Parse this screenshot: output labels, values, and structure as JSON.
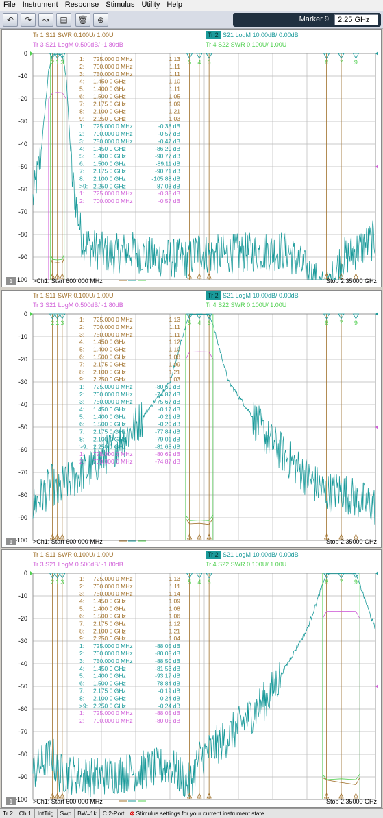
{
  "menu": [
    "File",
    "Instrument",
    "Response",
    "Stimulus",
    "Utility",
    "Help"
  ],
  "toolbar": {
    "buttons": [
      "undo-icon",
      "redo-icon",
      "marker-add-icon",
      "display-icon",
      "trash-icon",
      "zoom-icon"
    ],
    "marker_label": "Marker 9",
    "marker_value": "2.25 GHz"
  },
  "colors": {
    "tr1": "#a0702a",
    "tr2": "#1a9a9a",
    "tr3": "#d060d8",
    "tr4": "#50d050",
    "grid": "#b8b8b8"
  },
  "traces": {
    "tr1": "Tr  1   S11  SWR 0.100U/  1.00U",
    "tr2_badge": "Tr  2",
    "tr2": "S21 LogM 10.00dB/  0.00dB",
    "tr3": "Tr  3   S21 LogM 0.500dB/  -1.80dB",
    "tr4": "Tr  4   S22 SWR 0.100U/  1.00U"
  },
  "y_ticks": [
    "0",
    "-10",
    "-20",
    "-30",
    "-40",
    "-50",
    "-60",
    "-70",
    "-80",
    "-90",
    "-100"
  ],
  "footer": {
    "ch_badge": "1",
    "start": ">Ch1:  Start   600.000 MHz",
    "stop": "Stop  2.35000 GHz"
  },
  "channels": [
    {
      "rows": [
        [
          "1:",
          "725.000 0 MHz",
          "1.13"
        ],
        [
          "2:",
          "700.000 0 MHz",
          "1.11"
        ],
        [
          "3:",
          "750.000 0 MHz",
          "1.11"
        ],
        [
          "4:",
          "1.450 0 GHz",
          "1.10"
        ],
        [
          "5:",
          "1.400 0 GHz",
          "1.11"
        ],
        [
          "6:",
          "1.500 0 GHz",
          "1.05"
        ],
        [
          "7:",
          "2.175 0 GHz",
          "1.09"
        ],
        [
          "8:",
          "2.100 0 GHz",
          "1.21"
        ],
        [
          "9:",
          "2.250 0 GHz",
          "1.03"
        ],
        [
          "1:",
          "725.000 0 MHz",
          "-0.38 dB"
        ],
        [
          "2:",
          "700.000 0 MHz",
          "-0.57 dB"
        ],
        [
          "3:",
          "750.000 0 MHz",
          "-0.47 dB"
        ],
        [
          "4:",
          "1.450 0 GHz",
          "-86.20 dB"
        ],
        [
          "5:",
          "1.400 0 GHz",
          "-90.77 dB"
        ],
        [
          "6:",
          "1.500 0 GHz",
          "-89.11 dB"
        ],
        [
          "7:",
          "2.175 0 GHz",
          "-90.71 dB"
        ],
        [
          "8:",
          "2.100 0 GHz",
          "-105.88 dB"
        ],
        [
          ">9:",
          "2.250 0 GHz",
          "-87.03 dB"
        ],
        [
          "1:",
          "725.000 0 MHz",
          "-0.38 dB"
        ],
        [
          "2:",
          "700.000 0 MHz",
          "-0.57 dB"
        ]
      ]
    },
    {
      "rows": [
        [
          "1:",
          "725.000 0 MHz",
          "1.13"
        ],
        [
          "2:",
          "700.000 0 MHz",
          "1.11"
        ],
        [
          "3:",
          "750.000 0 MHz",
          "1.11"
        ],
        [
          "4:",
          "1.450 0 GHz",
          "1.12"
        ],
        [
          "5:",
          "1.400 0 GHz",
          "1.10"
        ],
        [
          "6:",
          "1.500 0 GHz",
          "1.08"
        ],
        [
          "7:",
          "2.175 0 GHz",
          "1.09"
        ],
        [
          "8:",
          "2.100 0 GHz",
          "1.21"
        ],
        [
          "9:",
          "2.250 0 GHz",
          "1.03"
        ],
        [
          "1:",
          "725.000 0 MHz",
          "-80.69 dB"
        ],
        [
          "2:",
          "700.000 0 MHz",
          "-74.87 dB"
        ],
        [
          "3:",
          "750.000 0 MHz",
          "-75.67 dB"
        ],
        [
          "4:",
          "1.450 0 GHz",
          "-0.17 dB"
        ],
        [
          "5:",
          "1.400 0 GHz",
          "-0.21 dB"
        ],
        [
          "6:",
          "1.500 0 GHz",
          "-0.20 dB"
        ],
        [
          "7:",
          "2.175 0 GHz",
          "-77.84 dB"
        ],
        [
          "8:",
          "2.100 0 GHz",
          "-79.01 dB"
        ],
        [
          ">9:",
          "2.250 0 GHz",
          "-81.65 dB"
        ],
        [
          "1:",
          "725.000 0 MHz",
          "-80.69 dB"
        ],
        [
          "2:",
          "700.000 0 MHz",
          "-74.87 dB"
        ]
      ]
    },
    {
      "rows": [
        [
          "1:",
          "725.000 0 MHz",
          "1.13"
        ],
        [
          "2:",
          "700.000 0 MHz",
          "1.11"
        ],
        [
          "3:",
          "750.000 0 MHz",
          "1.14"
        ],
        [
          "4:",
          "1.450 0 GHz",
          "1.09"
        ],
        [
          "5:",
          "1.400 0 GHz",
          "1.08"
        ],
        [
          "6:",
          "1.500 0 GHz",
          "1.06"
        ],
        [
          "7:",
          "2.175 0 GHz",
          "1.12"
        ],
        [
          "8:",
          "2.100 0 GHz",
          "1.21"
        ],
        [
          "9:",
          "2.250 0 GHz",
          "1.04"
        ],
        [
          "1:",
          "725.000 0 MHz",
          "-88.05 dB"
        ],
        [
          "2:",
          "700.000 0 MHz",
          "-80.05 dB"
        ],
        [
          "3:",
          "750.000 0 MHz",
          "-88.50 dB"
        ],
        [
          "4:",
          "1.450 0 GHz",
          "-81.53 dB"
        ],
        [
          "5:",
          "1.400 0 GHz",
          "-93.17 dB"
        ],
        [
          "6:",
          "1.500 0 GHz",
          "-78.84 dB"
        ],
        [
          "7:",
          "2.175 0 GHz",
          "-0.19 dB"
        ],
        [
          "8:",
          "2.100 0 GHz",
          "-0.24 dB"
        ],
        [
          ">9:",
          "2.250 0 GHz",
          "-0.24 dB"
        ],
        [
          "1:",
          "725.000 0 MHz",
          "-88.05 dB"
        ],
        [
          "2:",
          "700.000 0 MHz",
          "-80.05 dB"
        ]
      ]
    }
  ],
  "chart_data": [
    {
      "type": "line",
      "x_range_mhz": [
        600,
        2350
      ],
      "ylim": [
        -100,
        0
      ],
      "series": [
        {
          "name": "S21 LogM",
          "x_mhz": [
            600,
            640,
            680,
            700,
            725,
            750,
            770,
            800,
            850,
            900,
            1000,
            1100,
            1200,
            1400,
            1450,
            1500,
            1700,
            1900,
            2100,
            2175,
            2250,
            2350
          ],
          "values": [
            -65,
            -45,
            -8,
            -0.57,
            -0.38,
            -0.47,
            -10,
            -55,
            -82,
            -86,
            -89,
            -87,
            -90,
            -90.77,
            -86.2,
            -89.11,
            -88,
            -87,
            -105.88,
            -90.71,
            -87.03,
            -82
          ]
        },
        {
          "name": "S21 LogM 0.500dB",
          "x_mhz": [
            680,
            700,
            725,
            750,
            770
          ],
          "values": [
            -1.8,
            -0.57,
            -0.38,
            -0.47,
            -1.8
          ]
        },
        {
          "name": "S11 SWR",
          "x_mhz": [
            690,
            700,
            725,
            750,
            760
          ],
          "values": [
            1.3,
            1.11,
            1.13,
            1.11,
            1.3
          ]
        },
        {
          "name": "S22 SWR",
          "x_mhz": [
            690,
            700,
            725,
            750,
            760
          ],
          "values": [
            1.3,
            1.12,
            1.1,
            1.12,
            1.3
          ]
        }
      ],
      "markers_mhz": [
        725,
        700,
        750,
        1450,
        1400,
        1500,
        2175,
        2100,
        2250
      ]
    },
    {
      "type": "line",
      "x_range_mhz": [
        600,
        2350
      ],
      "ylim": [
        -100,
        0
      ],
      "series": [
        {
          "name": "S21 LogM",
          "x_mhz": [
            600,
            700,
            725,
            750,
            900,
            1100,
            1300,
            1380,
            1400,
            1450,
            1500,
            1520,
            1600,
            1800,
            2000,
            2100,
            2175,
            2250,
            2350
          ],
          "values": [
            -85,
            -74.87,
            -80.69,
            -75.67,
            -68,
            -52,
            -30,
            -5,
            -0.21,
            -0.17,
            -0.2,
            -5,
            -30,
            -55,
            -72,
            -79.01,
            -77.84,
            -81.65,
            -85
          ]
        },
        {
          "name": "S21 LogM 0.500dB",
          "x_mhz": [
            1380,
            1400,
            1450,
            1500,
            1520
          ],
          "values": [
            -1.8,
            -0.21,
            -0.17,
            -0.2,
            -1.8
          ]
        },
        {
          "name": "S11 SWR",
          "x_mhz": [
            1380,
            1400,
            1450,
            1500,
            1520
          ],
          "values": [
            1.3,
            1.1,
            1.12,
            1.08,
            1.3
          ]
        },
        {
          "name": "S22 SWR",
          "x_mhz": [
            1380,
            1400,
            1450,
            1500,
            1520
          ],
          "values": [
            1.3,
            1.09,
            1.11,
            1.09,
            1.3
          ]
        }
      ],
      "markers_mhz": [
        725,
        700,
        750,
        1450,
        1400,
        1500,
        2175,
        2100,
        2250
      ]
    },
    {
      "type": "line",
      "x_range_mhz": [
        600,
        2350
      ],
      "ylim": [
        -100,
        0
      ],
      "series": [
        {
          "name": "S21 LogM",
          "x_mhz": [
            600,
            700,
            725,
            750,
            900,
            1100,
            1300,
            1400,
            1450,
            1500,
            1600,
            1800,
            2000,
            2080,
            2100,
            2175,
            2250,
            2270,
            2350
          ],
          "values": [
            -88,
            -80.05,
            -88.05,
            -88.5,
            -90,
            -88,
            -85,
            -93.17,
            -81.53,
            -78.84,
            -72,
            -55,
            -25,
            -5,
            -0.24,
            -0.19,
            -0.24,
            -5,
            -25
          ]
        },
        {
          "name": "S21 LogM 0.500dB",
          "x_mhz": [
            2080,
            2100,
            2175,
            2250,
            2270
          ],
          "values": [
            -1.8,
            -0.24,
            -0.19,
            -0.24,
            -1.8
          ]
        },
        {
          "name": "S11 SWR",
          "x_mhz": [
            2080,
            2100,
            2175,
            2250,
            2270
          ],
          "values": [
            1.3,
            1.21,
            1.12,
            1.04,
            1.3
          ]
        },
        {
          "name": "S22 SWR",
          "x_mhz": [
            2080,
            2100,
            2175,
            2250,
            2270
          ],
          "values": [
            1.3,
            1.1,
            1.13,
            1.1,
            1.3
          ]
        }
      ],
      "markers_mhz": [
        725,
        700,
        750,
        1450,
        1400,
        1500,
        2175,
        2100,
        2250
      ]
    }
  ],
  "status": {
    "cells": [
      "Tr 2",
      "Ch 1",
      "IntTrig",
      "Swp",
      "BW=1k",
      "C  2-Port"
    ],
    "message": "Stimulus settings for your current instrument state"
  }
}
